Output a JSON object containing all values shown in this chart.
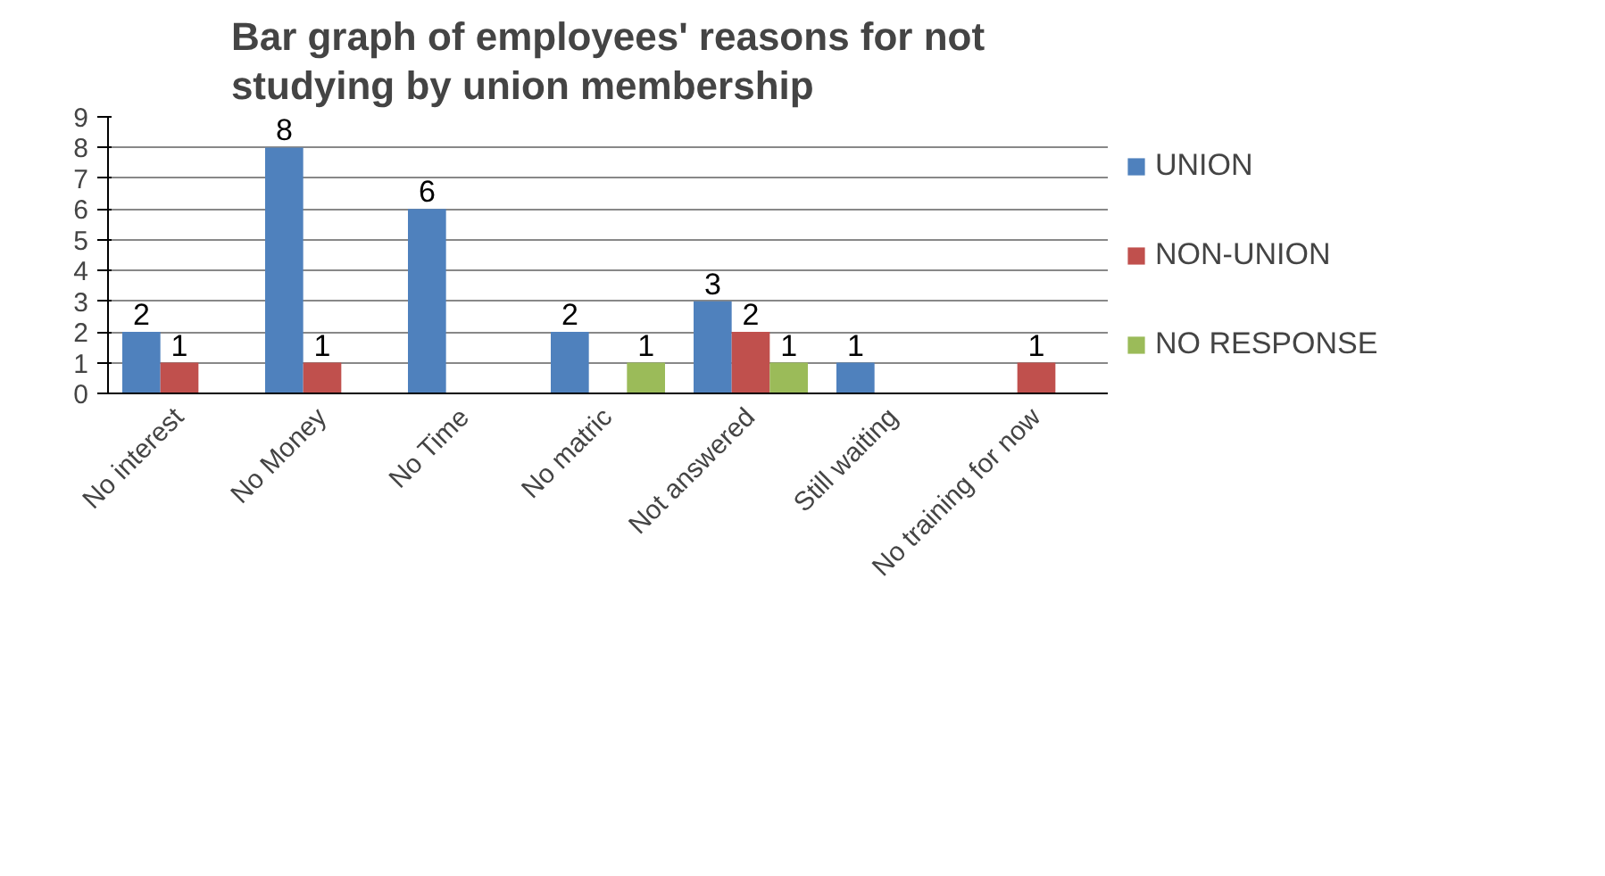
{
  "chart_data": {
    "type": "bar",
    "title": "Bar graph of employees' reasons for not studying by union membership",
    "categories": [
      "No interest",
      "No Money",
      "No Time",
      "No matric",
      "Not answered",
      "Still waiting",
      "No training for now"
    ],
    "series": [
      {
        "name": "UNION",
        "color": "#4f81bd",
        "values": [
          2,
          8,
          6,
          2,
          3,
          1,
          0
        ],
        "value_labels": [
          "2",
          "8",
          "6",
          "2",
          "3",
          "1",
          null
        ]
      },
      {
        "name": "NON-UNION",
        "color": "#c0504d",
        "values": [
          1,
          1,
          0,
          0,
          2,
          0,
          1
        ],
        "value_labels": [
          "1",
          "1",
          null,
          null,
          "2",
          null,
          "1"
        ]
      },
      {
        "name": "NO RESPONSE",
        "color": "#9bbb59",
        "values": [
          0,
          0,
          0,
          1,
          1,
          0,
          0
        ],
        "value_labels": [
          null,
          null,
          null,
          "1",
          "1",
          null,
          null
        ]
      }
    ],
    "ylim": [
      0,
      9
    ],
    "yticks": [
      0,
      1,
      2,
      3,
      4,
      5,
      6,
      7,
      8,
      9
    ],
    "grid": "y",
    "legend": "right"
  }
}
